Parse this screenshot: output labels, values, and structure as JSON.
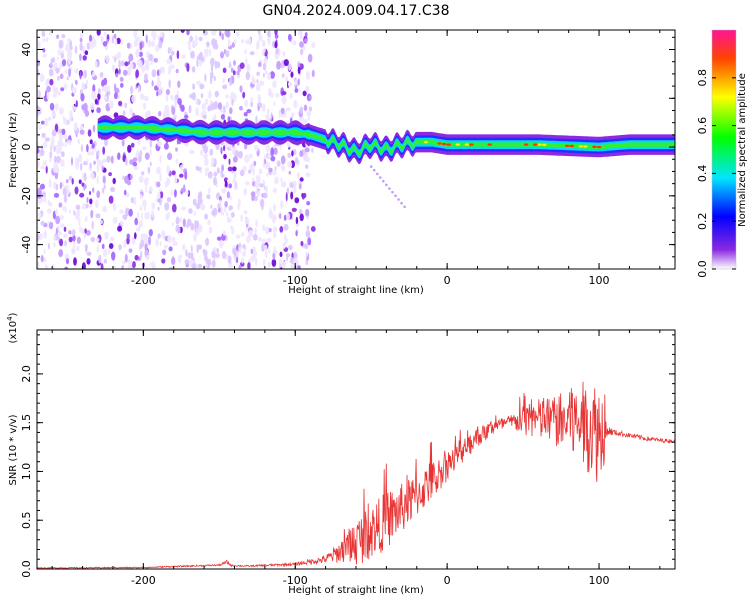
{
  "title": "GN04.2024.009.04.17.C38",
  "chart_data": [
    {
      "type": "heatmap",
      "xlabel": "Height of straight line (km)",
      "ylabel": "Frequency (Hz)",
      "xlim": [
        -270,
        150
      ],
      "ylim": [
        -50,
        48
      ],
      "x_ticks": [
        -200,
        -100,
        0,
        100
      ],
      "y_ticks": [
        -40,
        -20,
        0,
        20,
        40
      ],
      "x_tick_labels": [
        "-200",
        "-100",
        "0",
        "100"
      ],
      "y_tick_labels": [
        "-40",
        "-20",
        "0",
        "20",
        "40"
      ],
      "colorbar": {
        "label": "Normalized spectral amplitude",
        "range": [
          0,
          1
        ],
        "ticks": [
          0.0,
          0.2,
          0.4,
          0.6,
          0.8
        ],
        "tick_labels": [
          "0.0",
          "0.2",
          "0.4",
          "0.6",
          "0.8"
        ],
        "colormap": "rainbow (white-violet-blue-cyan-green-yellow-red-magenta)"
      },
      "ridge": {
        "x": [
          -225,
          -200,
          -180,
          -160,
          -140,
          -120,
          -100,
          -90,
          -80,
          -70,
          -60,
          -50,
          -40,
          -30,
          -20,
          -10,
          0,
          20,
          40,
          60,
          80,
          100,
          120,
          150
        ],
        "freq": [
          8,
          8,
          7,
          6,
          6,
          6,
          6,
          5,
          3,
          1,
          -2,
          1,
          -1,
          1,
          2,
          2,
          1,
          1,
          1,
          1,
          0.5,
          0,
          1,
          1
        ]
      },
      "noise_region": {
        "x_from": -270,
        "x_to": -88,
        "freq_from": -50,
        "freq_to": 48
      }
    },
    {
      "type": "line",
      "xlabel": "Height of straight line (km)",
      "ylabel": "SNR (10 * v/v)",
      "y_multiplier": "(x10^4)",
      "xlim": [
        -270,
        150
      ],
      "ylim": [
        0,
        24500
      ],
      "x_ticks": [
        -200,
        -100,
        0,
        100
      ],
      "y_ticks": [
        0,
        5000,
        10000,
        15000,
        20000
      ],
      "x_tick_labels": [
        "-200",
        "-100",
        "0",
        "100"
      ],
      "y_tick_labels": [
        "0.0",
        "0.5",
        "1.0",
        "1.5",
        "2.0"
      ],
      "series": [
        {
          "color": "#e83333",
          "envelope": {
            "x": [
              -270,
              -200,
              -150,
              -145,
              -142,
              -130,
              -100,
              -80,
              -70,
              -60,
              -50,
              -40,
              -30,
              -20,
              -10,
              0,
              10,
              20,
              30,
              40,
              50,
              60,
              70,
              80,
              90,
              95,
              100,
              103,
              105,
              110,
              120,
              130,
              140,
              150
            ],
            "base": [
              100,
              150,
              400,
              700,
              350,
              300,
              500,
              1000,
              1800,
              2800,
              3800,
              5000,
              6200,
              7500,
              9000,
              10500,
              12000,
              13500,
              14500,
              15000,
              15200,
              15300,
              15200,
              15000,
              14800,
              14600,
              14000,
              14300,
              14200,
              14000,
              13700,
              13400,
              13200,
              13100
            ],
            "jitter": [
              50,
              60,
              80,
              200,
              80,
              80,
              150,
              400,
              1200,
              2500,
              2800,
              3000,
              2600,
              2200,
              2000,
              1500,
              1200,
              1000,
              800,
              700,
              1500,
              2200,
              2600,
              3500,
              4500,
              5000,
              5500,
              4000,
              600,
              300,
              250,
              250,
              200,
              200
            ]
          }
        }
      ]
    }
  ]
}
